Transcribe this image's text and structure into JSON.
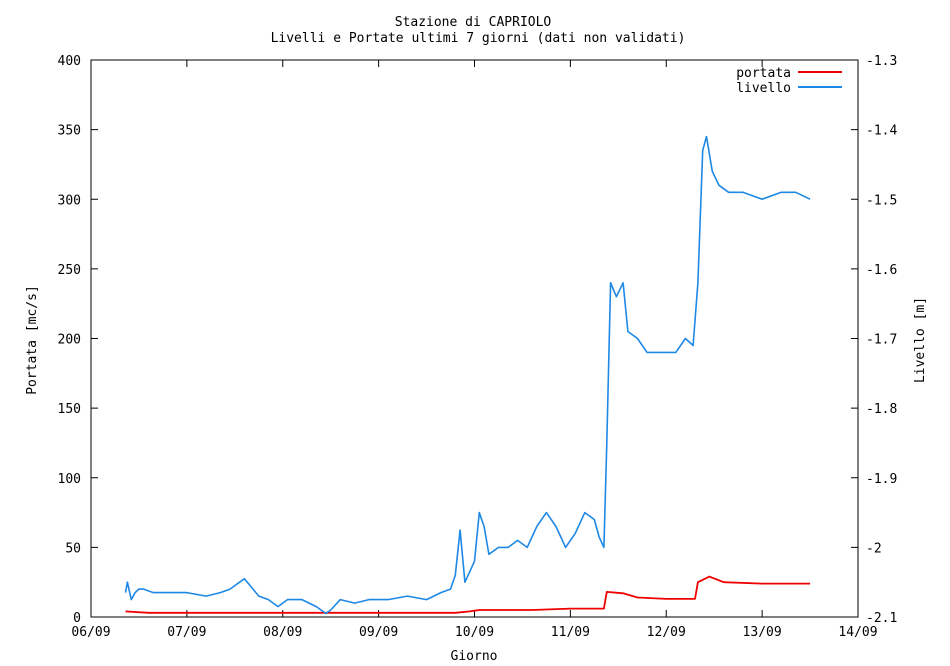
{
  "chart_data": {
    "type": "line",
    "title": "Stazione di CAPRIOLO",
    "subtitle": "Livelli e Portate ultimi 7 giorni (dati non validati)",
    "xlabel": "Giorno",
    "ylabel_left": "Portata [mc/s]",
    "ylabel_right": "Livello [m]",
    "x_ticks": [
      "06/09",
      "07/09",
      "08/09",
      "09/09",
      "10/09",
      "11/09",
      "12/09",
      "13/09",
      "14/09"
    ],
    "xlim": [
      0,
      8
    ],
    "ylim_left": [
      0,
      400
    ],
    "ylim_right": [
      -2.1,
      -1.3
    ],
    "y_ticks_left": [
      0,
      50,
      100,
      150,
      200,
      250,
      300,
      350,
      400
    ],
    "y_ticks_right": [
      "-1.3",
      "-1.4",
      "-1.5",
      "-1.6",
      "-1.7",
      "-1.8",
      "-1.9",
      "-2",
      "-2.1"
    ],
    "legend_position": "top-right",
    "series": [
      {
        "name": "portata",
        "axis": "left",
        "color": "#ee0000",
        "x": [
          0.36,
          0.6,
          1.0,
          1.5,
          2.0,
          2.5,
          3.0,
          3.5,
          3.8,
          3.95,
          4.05,
          4.3,
          4.6,
          5.0,
          5.35,
          5.38,
          5.55,
          5.7,
          6.0,
          6.3,
          6.33,
          6.45,
          6.6,
          7.0,
          7.4,
          7.5
        ],
        "y": [
          4,
          3,
          3,
          3,
          3,
          3,
          3,
          3,
          3,
          4,
          5,
          5,
          5,
          6,
          6,
          18,
          17,
          14,
          13,
          13,
          25,
          29,
          25,
          24,
          24,
          24
        ]
      },
      {
        "name": "livello",
        "axis": "right",
        "color": "#1e88e5",
        "x": [
          0.36,
          0.38,
          0.42,
          0.46,
          0.5,
          0.55,
          0.65,
          0.8,
          1.0,
          1.2,
          1.35,
          1.45,
          1.6,
          1.75,
          1.85,
          1.9,
          1.95,
          2.05,
          2.2,
          2.35,
          2.45,
          2.5,
          2.6,
          2.75,
          2.9,
          3.1,
          3.3,
          3.5,
          3.65,
          3.75,
          3.8,
          3.85,
          3.9,
          4.0,
          4.05,
          4.1,
          4.15,
          4.25,
          4.35,
          4.45,
          4.55,
          4.65,
          4.75,
          4.85,
          4.95,
          5.05,
          5.15,
          5.25,
          5.3,
          5.35,
          5.38,
          5.42,
          5.48,
          5.55,
          5.6,
          5.7,
          5.8,
          5.95,
          6.1,
          6.2,
          6.28,
          6.33,
          6.38,
          6.42,
          6.48,
          6.55,
          6.65,
          6.8,
          7.0,
          7.2,
          7.35,
          7.5
        ],
        "y": [
          -2.065,
          -2.05,
          -2.075,
          -2.065,
          -2.06,
          -2.06,
          -2.065,
          -2.065,
          -2.065,
          -2.07,
          -2.065,
          -2.06,
          -2.045,
          -2.07,
          -2.075,
          -2.08,
          -2.085,
          -2.075,
          -2.075,
          -2.085,
          -2.095,
          -2.09,
          -2.075,
          -2.08,
          -2.075,
          -2.075,
          -2.07,
          -2.075,
          -2.065,
          -2.06,
          -2.04,
          -1.975,
          -2.05,
          -2.02,
          -1.95,
          -1.97,
          -2.01,
          -2.0,
          -2.0,
          -1.99,
          -2.0,
          -1.97,
          -1.95,
          -1.97,
          -2.0,
          -1.98,
          -1.95,
          -1.96,
          -1.985,
          -2.0,
          -1.85,
          -1.62,
          -1.64,
          -1.62,
          -1.69,
          -1.7,
          -1.72,
          -1.72,
          -1.72,
          -1.7,
          -1.71,
          -1.62,
          -1.43,
          -1.41,
          -1.46,
          -1.48,
          -1.49,
          -1.49,
          -1.5,
          -1.49,
          -1.49,
          -1.5
        ]
      }
    ]
  }
}
